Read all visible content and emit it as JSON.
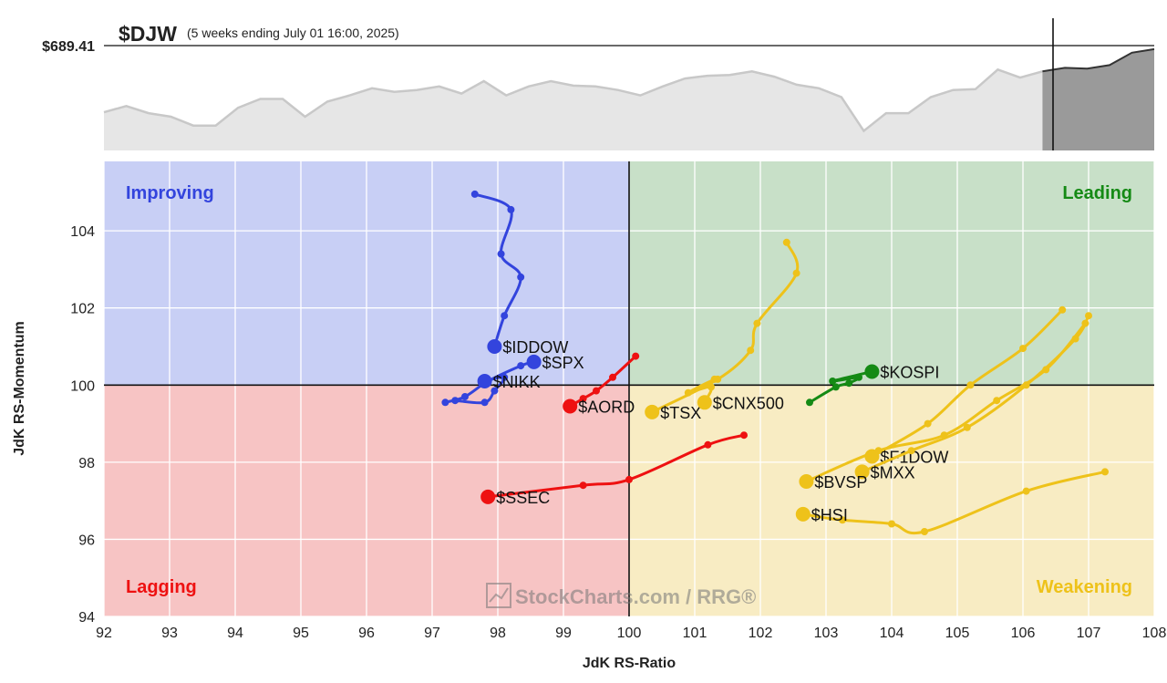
{
  "header": {
    "symbol": "$DJW",
    "period": "(5 weeks ending July 01 16:00, 2025)",
    "price_label": "$689.41"
  },
  "quadrants": {
    "improving": "Improving",
    "leading": "Leading",
    "lagging": "Lagging",
    "weakening": "Weakening"
  },
  "watermark": "StockCharts.com / RRG®",
  "colors": {
    "improving_bg": "#c8cff5",
    "leading_bg": "#c8e0c8",
    "lagging_bg": "#f7c4c4",
    "weakening_bg": "#f8ecc3",
    "blue": "#3344dd",
    "green": "#158a15",
    "red": "#ee1111",
    "yellow": "#eec21a"
  },
  "chart_data": [
    {
      "type": "area",
      "title": "$DJW",
      "ylabel": "",
      "last_value_label": "$689.41",
      "values": [
        43,
        50,
        42,
        38,
        28,
        28,
        48,
        58,
        58,
        38,
        55,
        62,
        70,
        66,
        68,
        72,
        64,
        78,
        62,
        72,
        78,
        73,
        72,
        68,
        62,
        72,
        81,
        84,
        85,
        89,
        83,
        74,
        70,
        60,
        22,
        42,
        42,
        60,
        68,
        69,
        91,
        82,
        89,
        93,
        92,
        96,
        110,
        114
      ],
      "highlight_last": 6,
      "ylim": [
        0,
        118
      ]
    },
    {
      "type": "scatter",
      "xlabel": "JdK RS-Ratio",
      "ylabel": "JdK RS-Momentum",
      "xlim": [
        92,
        108
      ],
      "ylim": [
        94,
        105.8
      ],
      "xticks": [
        "92",
        "93",
        "94",
        "95",
        "96",
        "97",
        "98",
        "99",
        "100",
        "101",
        "102",
        "103",
        "104",
        "105",
        "106",
        "107",
        "108"
      ],
      "yticks": [
        "94",
        "96",
        "98",
        "100",
        "102",
        "104"
      ],
      "center": [
        100,
        100
      ],
      "series": [
        {
          "name": "$IDDOW",
          "color": "blue",
          "points": [
            [
              97.65,
              104.95
            ],
            [
              98.2,
              104.55
            ],
            [
              98.05,
              103.4
            ],
            [
              98.35,
              102.8
            ],
            [
              98.1,
              101.8
            ],
            [
              97.95,
              101.0
            ]
          ]
        },
        {
          "name": "$SPX",
          "color": "blue",
          "points": [
            [
              97.2,
              99.55
            ],
            [
              97.5,
              99.7
            ],
            [
              97.85,
              100.1
            ],
            [
              98.35,
              100.5
            ],
            [
              98.55,
              100.6
            ]
          ]
        },
        {
          "name": "$NIKK",
          "color": "blue",
          "points": [
            [
              97.35,
              99.6
            ],
            [
              97.8,
              99.55
            ],
            [
              97.95,
              99.85
            ],
            [
              98.1,
              100.2
            ],
            [
              97.8,
              100.1
            ]
          ]
        },
        {
          "name": "$KOSPI",
          "color": "green",
          "points": [
            [
              102.75,
              99.55
            ],
            [
              103.15,
              99.95
            ],
            [
              103.35,
              100.05
            ],
            [
              103.5,
              100.2
            ],
            [
              103.1,
              100.1
            ],
            [
              103.7,
              100.35
            ]
          ]
        },
        {
          "name": "$AORD",
          "color": "red",
          "points": [
            [
              100.1,
              100.75
            ],
            [
              99.75,
              100.2
            ],
            [
              99.5,
              99.85
            ],
            [
              99.3,
              99.65
            ],
            [
              99.1,
              99.45
            ]
          ]
        },
        {
          "name": "$SSEC",
          "color": "red",
          "points": [
            [
              101.75,
              98.7
            ],
            [
              101.2,
              98.45
            ],
            [
              100.0,
              97.55
            ],
            [
              99.3,
              97.4
            ],
            [
              97.85,
              97.1
            ]
          ]
        },
        {
          "name": "$TSX",
          "color": "yellow",
          "points": [
            [
              102.4,
              103.7
            ],
            [
              102.55,
              102.9
            ],
            [
              101.95,
              101.6
            ],
            [
              101.85,
              100.9
            ],
            [
              101.35,
              100.15
            ],
            [
              100.35,
              99.3
            ]
          ]
        },
        {
          "name": "$CNX500",
          "color": "yellow",
          "points": [
            [
              101.3,
              100.15
            ],
            [
              100.9,
              99.8
            ],
            [
              101.25,
              99.95
            ],
            [
              101.15,
              99.55
            ]
          ]
        },
        {
          "name": "$F1DOW",
          "color": "yellow",
          "points": [
            [
              106.6,
              101.95
            ],
            [
              106.0,
              100.95
            ],
            [
              105.2,
              100.0
            ],
            [
              104.55,
              99.0
            ],
            [
              103.7,
              98.15
            ]
          ]
        },
        {
          "name": "$MXX",
          "color": "yellow",
          "points": [
            [
              107.0,
              101.8
            ],
            [
              106.8,
              101.2
            ],
            [
              106.05,
              100.0
            ],
            [
              105.15,
              98.9
            ],
            [
              104.3,
              98.3
            ],
            [
              103.55,
              97.75
            ]
          ]
        },
        {
          "name": "$BVSP",
          "color": "yellow",
          "points": [
            [
              106.95,
              101.6
            ],
            [
              106.35,
              100.4
            ],
            [
              105.6,
              99.6
            ],
            [
              104.8,
              98.7
            ],
            [
              103.8,
              98.3
            ],
            [
              102.7,
              97.5
            ]
          ]
        },
        {
          "name": "$HSI",
          "color": "yellow",
          "points": [
            [
              107.25,
              97.75
            ],
            [
              106.05,
              97.25
            ],
            [
              104.5,
              96.2
            ],
            [
              104.0,
              96.4
            ],
            [
              103.25,
              96.5
            ],
            [
              102.65,
              96.65
            ]
          ]
        }
      ]
    }
  ]
}
